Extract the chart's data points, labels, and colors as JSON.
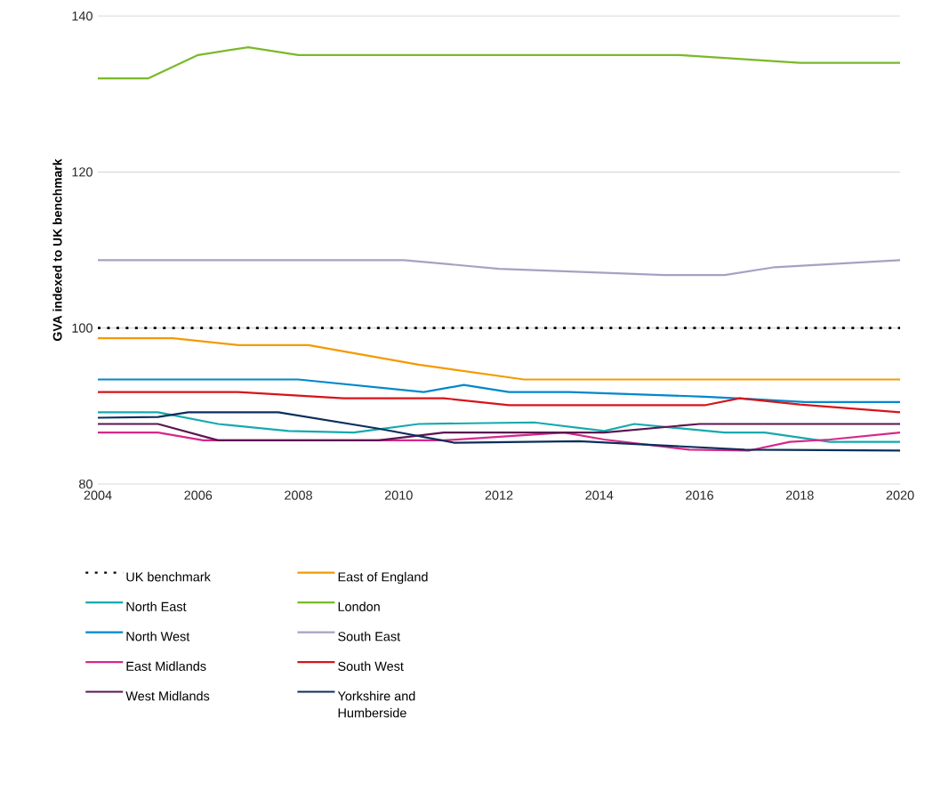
{
  "chart_data": {
    "type": "line",
    "ylabel": "GVA indexed to UK benchmark",
    "xlim": [
      2004,
      2020
    ],
    "ylim": [
      80,
      140
    ],
    "xticks": [
      2004,
      2006,
      2008,
      2010,
      2012,
      2014,
      2016,
      2018,
      2020
    ],
    "yticks": [
      80,
      100,
      120,
      140
    ],
    "grid": "y",
    "legend": "bottom",
    "marker": "none",
    "line_style": "solid",
    "series": [
      {
        "name": "UK benchmark",
        "color": "#000000",
        "line_style": "dotted",
        "x": [
          2004,
          2020
        ],
        "values": [
          100,
          100
        ]
      },
      {
        "name": "East of England",
        "color": "#f59a00",
        "x": [
          2004,
          2005.5,
          2006.8,
          2008.2,
          2010.4,
          2012.5,
          2020
        ],
        "values": [
          98.7,
          98.7,
          97.8,
          97.8,
          95.3,
          93.4,
          93.4
        ]
      },
      {
        "name": "North East",
        "color": "#16a9ad",
        "x": [
          2004,
          2005.2,
          2006.4,
          2007.8,
          2009.1,
          2010.4,
          2012.7,
          2014.1,
          2014.7,
          2016.5,
          2017.3,
          2018.6,
          2020
        ],
        "values": [
          89.2,
          89.2,
          87.7,
          86.8,
          86.6,
          87.7,
          87.9,
          86.8,
          87.7,
          86.6,
          86.6,
          85.4,
          85.4
        ]
      },
      {
        "name": "London",
        "color": "#7ab929",
        "x": [
          2004,
          2005,
          2006,
          2007,
          2008,
          2015.6,
          2018,
          2020
        ],
        "values": [
          132,
          132,
          135,
          136,
          135,
          135,
          134,
          134
        ]
      },
      {
        "name": "North West",
        "color": "#0088cc",
        "x": [
          2004,
          2008,
          2010.5,
          2011.3,
          2012.2,
          2013.4,
          2016.1,
          2017,
          2018.1,
          2020
        ],
        "values": [
          93.4,
          93.4,
          91.8,
          92.7,
          91.8,
          91.8,
          91.2,
          90.9,
          90.5,
          90.5
        ]
      },
      {
        "name": "South East",
        "color": "#a7a1c2",
        "x": [
          2004,
          2010.1,
          2012,
          2015.3,
          2016.5,
          2017.5,
          2020
        ],
        "values": [
          108.7,
          108.7,
          107.6,
          106.8,
          106.8,
          107.8,
          108.7
        ]
      },
      {
        "name": "East Midlands",
        "color": "#d6288a",
        "x": [
          2004,
          2005.2,
          2006.1,
          2010.9,
          2013.3,
          2014.1,
          2015.8,
          2017,
          2017.8,
          2018.6,
          2020
        ],
        "values": [
          86.6,
          86.6,
          85.6,
          85.6,
          86.6,
          85.7,
          84.4,
          84.3,
          85.4,
          85.7,
          86.6
        ]
      },
      {
        "name": "South West",
        "color": "#d7141b",
        "x": [
          2004,
          2006.8,
          2008.9,
          2010.9,
          2012.2,
          2016.1,
          2016.8,
          2018,
          2020
        ],
        "values": [
          91.8,
          91.8,
          91.0,
          91.0,
          90.1,
          90.1,
          91.0,
          90.2,
          89.2
        ]
      },
      {
        "name": "West Midlands",
        "color": "#5b1650",
        "x": [
          2004,
          2005.2,
          2006.4,
          2009.6,
          2010.9,
          2014.1,
          2016,
          2020
        ],
        "values": [
          87.7,
          87.7,
          85.6,
          85.6,
          86.6,
          86.6,
          87.7,
          87.7
        ]
      },
      {
        "name": "Yorkshire and Humberside",
        "color": "#0c2f5b",
        "x": [
          2004,
          2005.2,
          2005.8,
          2007.6,
          2009.6,
          2011.1,
          2013.6,
          2016.9,
          2020
        ],
        "values": [
          88.5,
          88.6,
          89.2,
          89.2,
          87.1,
          85.3,
          85.5,
          84.4,
          84.3
        ]
      }
    ]
  }
}
